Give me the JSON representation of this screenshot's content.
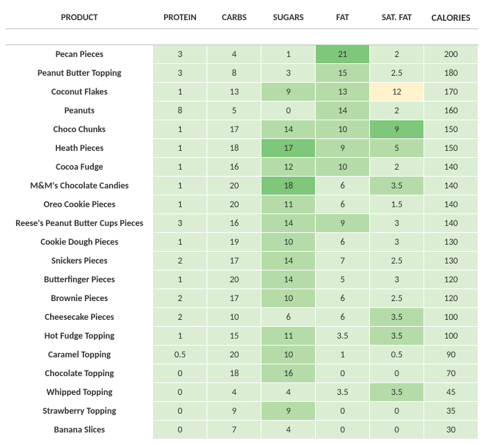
{
  "palette": {
    "light": "#dbeed4",
    "mid": "#b5dca8",
    "dark": "#7fc77a",
    "yellow": "#fff2cc",
    "white": "#ffffff"
  },
  "table": {
    "headers": [
      "PRODUCT",
      "PROTEIN",
      "CARBS",
      "SUGARS",
      "FAT",
      "SAT. FAT",
      "CALORIES"
    ],
    "rows": [
      {
        "product": "Pecan Pieces",
        "protein": {
          "v": "3",
          "c": "light"
        },
        "carbs": {
          "v": "4",
          "c": "light"
        },
        "sugars": {
          "v": "1",
          "c": "light"
        },
        "fat": {
          "v": "21",
          "c": "dark"
        },
        "satfat": {
          "v": "2",
          "c": "light"
        },
        "calories": {
          "v": "200",
          "c": "light"
        }
      },
      {
        "product": "Peanut Butter Topping",
        "protein": {
          "v": "3",
          "c": "light"
        },
        "carbs": {
          "v": "8",
          "c": "light"
        },
        "sugars": {
          "v": "3",
          "c": "light"
        },
        "fat": {
          "v": "15",
          "c": "mid"
        },
        "satfat": {
          "v": "2.5",
          "c": "light"
        },
        "calories": {
          "v": "180",
          "c": "light"
        }
      },
      {
        "product": "Coconut Flakes",
        "protein": {
          "v": "1",
          "c": "light"
        },
        "carbs": {
          "v": "13",
          "c": "light"
        },
        "sugars": {
          "v": "9",
          "c": "mid"
        },
        "fat": {
          "v": "13",
          "c": "mid"
        },
        "satfat": {
          "v": "12",
          "c": "yellow"
        },
        "calories": {
          "v": "170",
          "c": "light"
        }
      },
      {
        "product": "Peanuts",
        "protein": {
          "v": "8",
          "c": "light"
        },
        "carbs": {
          "v": "5",
          "c": "light"
        },
        "sugars": {
          "v": "0",
          "c": "light"
        },
        "fat": {
          "v": "14",
          "c": "mid"
        },
        "satfat": {
          "v": "2",
          "c": "light"
        },
        "calories": {
          "v": "160",
          "c": "light"
        }
      },
      {
        "product": "Choco Chunks",
        "protein": {
          "v": "1",
          "c": "light"
        },
        "carbs": {
          "v": "17",
          "c": "light"
        },
        "sugars": {
          "v": "14",
          "c": "mid"
        },
        "fat": {
          "v": "10",
          "c": "mid"
        },
        "satfat": {
          "v": "9",
          "c": "dark"
        },
        "calories": {
          "v": "150",
          "c": "light"
        }
      },
      {
        "product": "Heath Pieces",
        "protein": {
          "v": "1",
          "c": "light"
        },
        "carbs": {
          "v": "18",
          "c": "light"
        },
        "sugars": {
          "v": "17",
          "c": "dark"
        },
        "fat": {
          "v": "9",
          "c": "mid"
        },
        "satfat": {
          "v": "5",
          "c": "mid"
        },
        "calories": {
          "v": "150",
          "c": "light"
        }
      },
      {
        "product": "Cocoa Fudge",
        "protein": {
          "v": "1",
          "c": "light"
        },
        "carbs": {
          "v": "16",
          "c": "light"
        },
        "sugars": {
          "v": "12",
          "c": "mid"
        },
        "fat": {
          "v": "10",
          "c": "mid"
        },
        "satfat": {
          "v": "2",
          "c": "light"
        },
        "calories": {
          "v": "140",
          "c": "light"
        }
      },
      {
        "product": "M&M's Chocolate Candies",
        "protein": {
          "v": "1",
          "c": "light"
        },
        "carbs": {
          "v": "20",
          "c": "light"
        },
        "sugars": {
          "v": "18",
          "c": "dark"
        },
        "fat": {
          "v": "6",
          "c": "light"
        },
        "satfat": {
          "v": "3.5",
          "c": "mid"
        },
        "calories": {
          "v": "140",
          "c": "light"
        }
      },
      {
        "product": "Oreo Cookie Pieces",
        "protein": {
          "v": "1",
          "c": "light"
        },
        "carbs": {
          "v": "20",
          "c": "light"
        },
        "sugars": {
          "v": "11",
          "c": "mid"
        },
        "fat": {
          "v": "6",
          "c": "light"
        },
        "satfat": {
          "v": "1.5",
          "c": "light"
        },
        "calories": {
          "v": "140",
          "c": "light"
        }
      },
      {
        "product": "Reese's Peanut Butter Cups Pieces",
        "protein": {
          "v": "3",
          "c": "light"
        },
        "carbs": {
          "v": "16",
          "c": "light"
        },
        "sugars": {
          "v": "14",
          "c": "mid"
        },
        "fat": {
          "v": "9",
          "c": "mid"
        },
        "satfat": {
          "v": "3",
          "c": "light"
        },
        "calories": {
          "v": "140",
          "c": "light"
        }
      },
      {
        "product": "Cookie Dough Pieces",
        "protein": {
          "v": "1",
          "c": "light"
        },
        "carbs": {
          "v": "19",
          "c": "light"
        },
        "sugars": {
          "v": "10",
          "c": "mid"
        },
        "fat": {
          "v": "6",
          "c": "light"
        },
        "satfat": {
          "v": "3",
          "c": "light"
        },
        "calories": {
          "v": "130",
          "c": "light"
        }
      },
      {
        "product": "Snickers Pieces",
        "protein": {
          "v": "2",
          "c": "light"
        },
        "carbs": {
          "v": "17",
          "c": "light"
        },
        "sugars": {
          "v": "14",
          "c": "mid"
        },
        "fat": {
          "v": "7",
          "c": "light"
        },
        "satfat": {
          "v": "2.5",
          "c": "light"
        },
        "calories": {
          "v": "130",
          "c": "light"
        }
      },
      {
        "product": "Butterfinger Pieces",
        "protein": {
          "v": "1",
          "c": "light"
        },
        "carbs": {
          "v": "20",
          "c": "light"
        },
        "sugars": {
          "v": "14",
          "c": "mid"
        },
        "fat": {
          "v": "5",
          "c": "light"
        },
        "satfat": {
          "v": "3",
          "c": "light"
        },
        "calories": {
          "v": "120",
          "c": "light"
        }
      },
      {
        "product": "Brownie Pieces",
        "protein": {
          "v": "2",
          "c": "light"
        },
        "carbs": {
          "v": "17",
          "c": "light"
        },
        "sugars": {
          "v": "10",
          "c": "mid"
        },
        "fat": {
          "v": "6",
          "c": "light"
        },
        "satfat": {
          "v": "2.5",
          "c": "light"
        },
        "calories": {
          "v": "120",
          "c": "light"
        }
      },
      {
        "product": "Cheesecake Pieces",
        "protein": {
          "v": "2",
          "c": "light"
        },
        "carbs": {
          "v": "10",
          "c": "light"
        },
        "sugars": {
          "v": "6",
          "c": "light"
        },
        "fat": {
          "v": "6",
          "c": "light"
        },
        "satfat": {
          "v": "3.5",
          "c": "mid"
        },
        "calories": {
          "v": "100",
          "c": "light"
        }
      },
      {
        "product": "Hot Fudge Topping",
        "protein": {
          "v": "1",
          "c": "light"
        },
        "carbs": {
          "v": "15",
          "c": "light"
        },
        "sugars": {
          "v": "11",
          "c": "mid"
        },
        "fat": {
          "v": "3.5",
          "c": "light"
        },
        "satfat": {
          "v": "3.5",
          "c": "mid"
        },
        "calories": {
          "v": "100",
          "c": "light"
        }
      },
      {
        "product": "Caramel Topping",
        "protein": {
          "v": "0.5",
          "c": "light"
        },
        "carbs": {
          "v": "20",
          "c": "light"
        },
        "sugars": {
          "v": "10",
          "c": "mid"
        },
        "fat": {
          "v": "1",
          "c": "light"
        },
        "satfat": {
          "v": "0.5",
          "c": "light"
        },
        "calories": {
          "v": "90",
          "c": "light"
        }
      },
      {
        "product": "Chocolate Topping",
        "protein": {
          "v": "0",
          "c": "light"
        },
        "carbs": {
          "v": "18",
          "c": "light"
        },
        "sugars": {
          "v": "16",
          "c": "mid"
        },
        "fat": {
          "v": "0",
          "c": "light"
        },
        "satfat": {
          "v": "0",
          "c": "light"
        },
        "calories": {
          "v": "70",
          "c": "light"
        }
      },
      {
        "product": "Whipped Topping",
        "protein": {
          "v": "0",
          "c": "light"
        },
        "carbs": {
          "v": "4",
          "c": "light"
        },
        "sugars": {
          "v": "4",
          "c": "light"
        },
        "fat": {
          "v": "3.5",
          "c": "light"
        },
        "satfat": {
          "v": "3.5",
          "c": "mid"
        },
        "calories": {
          "v": "45",
          "c": "light"
        }
      },
      {
        "product": "Strawberry Topping",
        "protein": {
          "v": "0",
          "c": "light"
        },
        "carbs": {
          "v": "9",
          "c": "light"
        },
        "sugars": {
          "v": "9",
          "c": "mid"
        },
        "fat": {
          "v": "0",
          "c": "light"
        },
        "satfat": {
          "v": "0",
          "c": "light"
        },
        "calories": {
          "v": "35",
          "c": "light"
        }
      },
      {
        "product": "Banana Slices",
        "protein": {
          "v": "0",
          "c": "light"
        },
        "carbs": {
          "v": "7",
          "c": "light"
        },
        "sugars": {
          "v": "4",
          "c": "light"
        },
        "fat": {
          "v": "0",
          "c": "light"
        },
        "satfat": {
          "v": "0",
          "c": "light"
        },
        "calories": {
          "v": "30",
          "c": "light"
        }
      }
    ]
  }
}
